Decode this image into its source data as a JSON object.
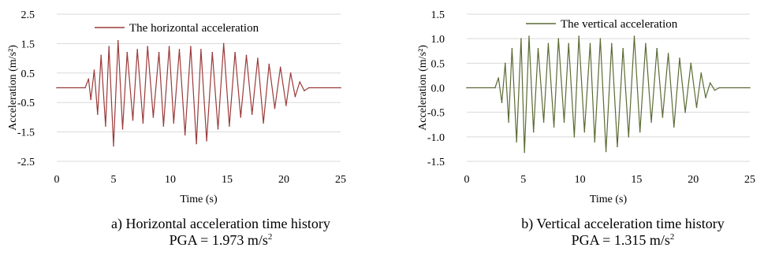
{
  "chart_data": [
    {
      "type": "line",
      "title": "",
      "xlabel": "Time (s)",
      "ylabel": "Acceleration  (m/s²)",
      "xlim": [
        0,
        25
      ],
      "ylim": [
        -2.5,
        2.5
      ],
      "x_ticks": [
        "0",
        "5",
        "10",
        "15",
        "20",
        "25"
      ],
      "y_ticks": [
        "2.5",
        "1.5",
        "0.5",
        "-0.5",
        "-1.5",
        "-2.5"
      ],
      "grid": "horizontal",
      "legend_position": "top-center",
      "line_color": "#9b3a3a",
      "series": [
        {
          "name": "The horizontal acceleration",
          "x": [
            0,
            2.5,
            2.8,
            3.0,
            3.3,
            3.6,
            3.9,
            4.3,
            4.6,
            5.0,
            5.4,
            5.8,
            6.2,
            6.7,
            7.1,
            7.6,
            8.0,
            8.5,
            9.0,
            9.4,
            9.9,
            10.3,
            10.8,
            11.3,
            11.8,
            12.3,
            12.7,
            13.2,
            13.7,
            14.2,
            14.7,
            15.2,
            15.7,
            16.2,
            16.7,
            17.2,
            17.7,
            18.2,
            18.7,
            19.2,
            19.7,
            20.2,
            20.6,
            21.0,
            21.4,
            21.8,
            22.2,
            25
          ],
          "values": [
            0.0,
            0.0,
            0.3,
            -0.4,
            0.6,
            -0.9,
            1.1,
            -1.3,
            1.4,
            -1.973,
            1.6,
            -1.4,
            1.2,
            -1.1,
            1.3,
            -1.2,
            1.4,
            -1.0,
            1.2,
            -1.3,
            1.4,
            -1.2,
            1.3,
            -1.6,
            1.4,
            -1.9,
            1.3,
            -1.8,
            1.2,
            -1.4,
            1.5,
            -1.3,
            1.2,
            -1.0,
            1.1,
            -0.9,
            1.0,
            -1.2,
            0.8,
            -0.7,
            0.7,
            -0.6,
            0.5,
            -0.3,
            0.2,
            -0.1,
            0.0,
            0.0
          ]
        }
      ],
      "caption_line1": "a) Horizontal acceleration time history",
      "caption_pga": "PGA = 1.973 m/s",
      "caption_sup": "2"
    },
    {
      "type": "line",
      "title": "",
      "xlabel": "Time (s)",
      "ylabel": "Acceleration  (m/s²)",
      "xlim": [
        0,
        25
      ],
      "ylim": [
        -1.5,
        1.5
      ],
      "x_ticks": [
        "0",
        "5",
        "10",
        "15",
        "20",
        "25"
      ],
      "y_ticks": [
        "1.5",
        "1.0",
        "0.5",
        "0.0",
        "-0.5",
        "-1.0",
        "-1.5"
      ],
      "grid": "horizontal",
      "legend_position": "top-center",
      "line_color": "#5b6b35",
      "series": [
        {
          "name": "The vertical acceleration",
          "x": [
            0,
            2.5,
            2.8,
            3.1,
            3.4,
            3.7,
            4.0,
            4.4,
            4.8,
            5.1,
            5.5,
            5.9,
            6.3,
            6.8,
            7.2,
            7.7,
            8.1,
            8.6,
            9.0,
            9.5,
            9.9,
            10.4,
            10.9,
            11.3,
            11.8,
            12.3,
            12.8,
            13.3,
            13.8,
            14.3,
            14.8,
            15.3,
            15.8,
            16.3,
            16.8,
            17.3,
            17.8,
            18.3,
            18.8,
            19.3,
            19.8,
            20.3,
            20.7,
            21.1,
            21.5,
            21.9,
            22.3,
            25
          ],
          "values": [
            0.0,
            0.0,
            0.2,
            -0.3,
            0.5,
            -0.7,
            0.8,
            -1.1,
            1.0,
            -1.315,
            1.05,
            -0.9,
            0.8,
            -0.7,
            0.9,
            -0.8,
            1.0,
            -0.7,
            0.9,
            -1.0,
            1.05,
            -0.9,
            0.9,
            -1.1,
            1.0,
            -1.3,
            0.9,
            -1.2,
            0.8,
            -1.0,
            1.05,
            -0.9,
            0.9,
            -0.7,
            0.8,
            -0.6,
            0.7,
            -0.8,
            0.6,
            -0.5,
            0.5,
            -0.4,
            0.3,
            -0.2,
            0.1,
            -0.05,
            0.0,
            0.0
          ]
        }
      ],
      "caption_line1": "b) Vertical acceleration time history",
      "caption_pga": "PGA = 1.315 m/s",
      "caption_sup": "2"
    }
  ]
}
